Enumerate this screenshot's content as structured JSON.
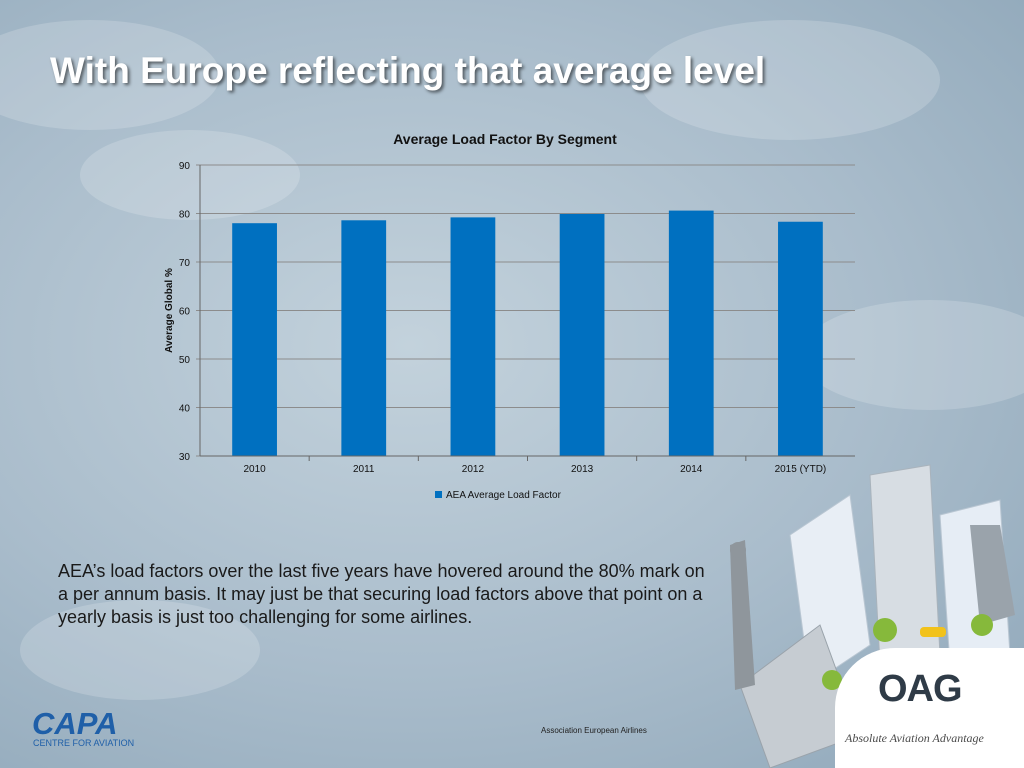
{
  "slide": {
    "title": "With Europe reflecting that average level",
    "body_text": "AEA’s load factors over the last five years have hovered around the 80% mark on a per annum basis. It may just be that securing load factors above that point on a yearly basis is just too challenging for some airlines.",
    "source": "Association European Airlines"
  },
  "logos": {
    "capa": "CAPA",
    "capa_sub": "CENTRE FOR AVIATION",
    "oag": "OAG",
    "oag_tagline": "Absolute Aviation Advantage"
  },
  "chart_data": {
    "type": "bar",
    "title": "Average Load Factor By Segment",
    "ylabel": "Average Global %",
    "xlabel": "",
    "categories": [
      "2010",
      "2011",
      "2012",
      "2013",
      "2014",
      "2015 (YTD)"
    ],
    "series": [
      {
        "name": "AEA Average Load Factor",
        "values": [
          78.0,
          78.6,
          79.2,
          79.9,
          80.6,
          78.3
        ]
      }
    ],
    "ylim": [
      30,
      90
    ],
    "yticks": [
      30,
      40,
      50,
      60,
      70,
      80,
      90
    ],
    "grid": true,
    "legend": "bottom",
    "colors": {
      "bar": "#0070c0",
      "grid": "#8c8c8c",
      "axis": "#666666"
    }
  }
}
